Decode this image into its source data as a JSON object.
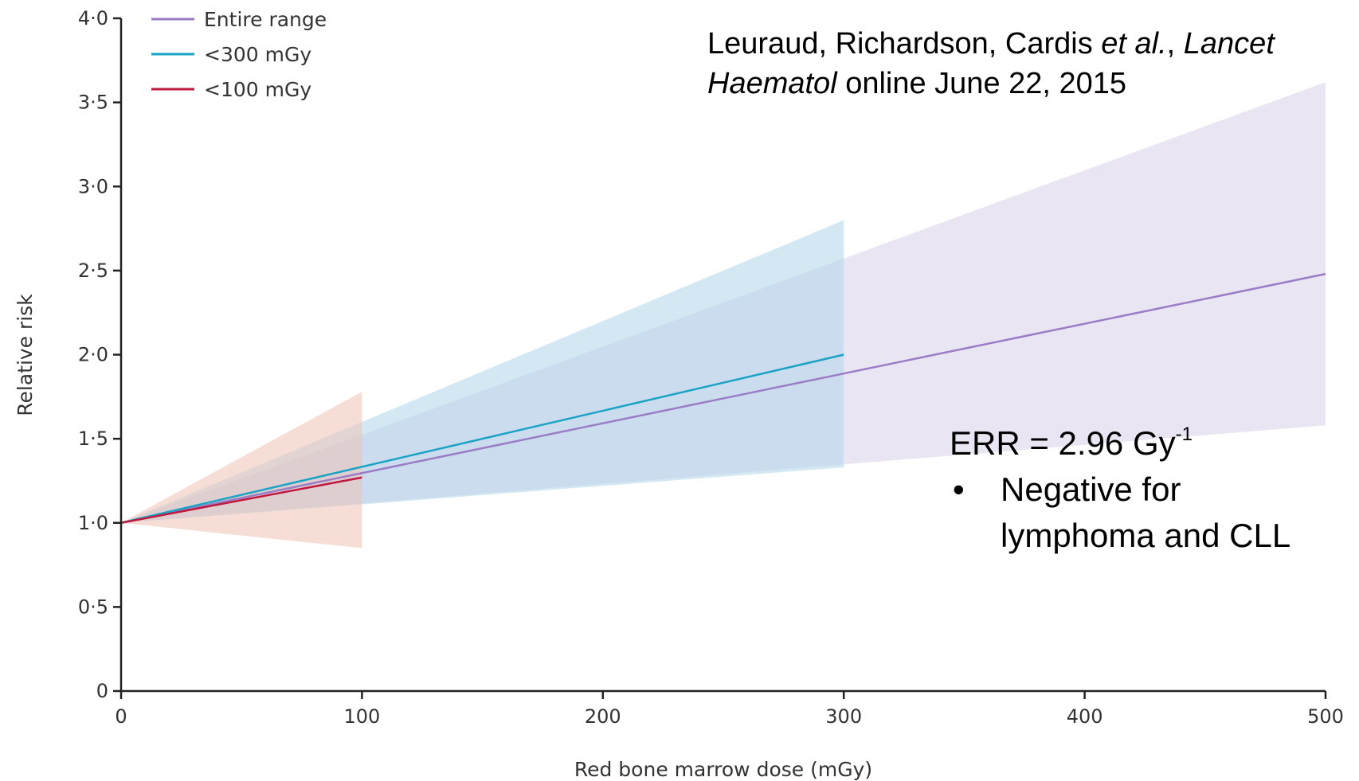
{
  "chart_data": {
    "type": "line",
    "title": "",
    "xlabel": "Red bone marrow dose (mGy)",
    "ylabel": "Relative risk",
    "xlim": [
      0,
      500
    ],
    "ylim": [
      0,
      4.0
    ],
    "x_ticks": [
      "0",
      "100",
      "200",
      "300",
      "400",
      "500"
    ],
    "y_ticks": [
      "0",
      "0·5",
      "1·0",
      "1·5",
      "2·0",
      "2·5",
      "3·0",
      "3·5",
      "4·0"
    ],
    "grid": false,
    "legend_position": "top-left",
    "series": [
      {
        "name": "Entire range",
        "color": "#9b7cc6",
        "band_color": "#d9cfe8",
        "x": [
          0,
          500
        ],
        "y": [
          1.0,
          2.48
        ],
        "band_lower": [
          1.0,
          1.58
        ],
        "band_upper": [
          1.0,
          3.62
        ]
      },
      {
        "name": "<300 mGy",
        "color": "#1aa3c4",
        "band_color": "#aed6ea",
        "x": [
          0,
          300
        ],
        "y": [
          1.0,
          2.0
        ],
        "band_lower": [
          1.0,
          1.33
        ],
        "band_upper": [
          1.0,
          2.8
        ]
      },
      {
        "name": "<100 mGy",
        "color": "#c0183f",
        "band_color": "#efc2b6",
        "x": [
          0,
          100
        ],
        "y": [
          1.0,
          1.27
        ],
        "band_lower": [
          1.0,
          0.85
        ],
        "band_upper": [
          1.0,
          1.78
        ]
      }
    ]
  },
  "citation": {
    "line1_authors": "Leuraud, Richardson, Cardis ",
    "line1_etal": "et al.",
    "line1_sep": ", ",
    "line1_journal_a": "Lancet",
    "line2_journal_b": "Haematol",
    "line2_rest": " online June 22, 2015"
  },
  "annotation": {
    "err_text": "ERR = 2.96 Gy",
    "err_superscript": "-1",
    "bullet": "•",
    "bullet_text_line1": "Negative for",
    "bullet_text_line2": "lymphoma and CLL"
  }
}
